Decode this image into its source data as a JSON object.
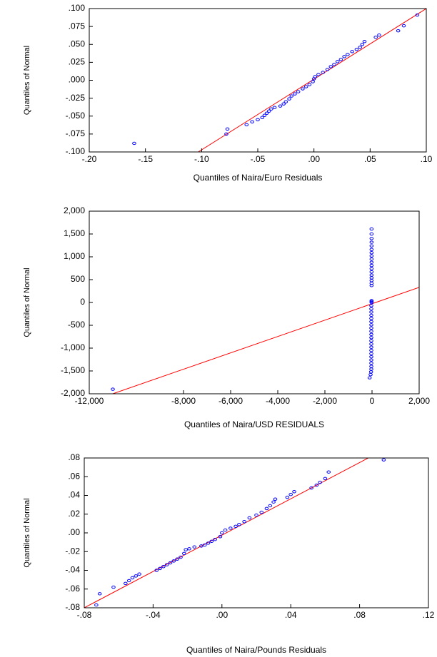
{
  "chart_data": [
    {
      "type": "scatter",
      "y_label": "Quantiles of Normal",
      "x_label": "Quantiles of Naira/Euro Residuals",
      "color": "#0000ff",
      "xlim": [
        -0.2,
        0.1
      ],
      "ylim": [
        -0.1,
        0.1
      ],
      "xticks": [
        {
          "value": -0.2,
          "label": "-.20"
        },
        {
          "value": -0.15,
          "label": "-.15"
        },
        {
          "value": -0.1,
          "label": "-.10"
        },
        {
          "value": -0.05,
          "label": "-.05"
        },
        {
          "value": 0,
          "label": ".00"
        },
        {
          "value": 0.05,
          "label": ".05"
        },
        {
          "value": 0.1,
          "label": ".10"
        }
      ],
      "yticks": [
        {
          "value": -0.1,
          "label": "-.100"
        },
        {
          "value": -0.075,
          "label": "-.075"
        },
        {
          "value": -0.05,
          "label": "-.050"
        },
        {
          "value": -0.025,
          "label": "-.025"
        },
        {
          "value": 0,
          "label": ".000"
        },
        {
          "value": 0.025,
          "label": ".025"
        },
        {
          "value": 0.05,
          "label": ".050"
        },
        {
          "value": 0.075,
          "label": ".075"
        },
        {
          "value": 0.1,
          "label": ".100"
        }
      ],
      "x": [
        -0.16,
        -0.078,
        -0.077,
        -0.06,
        -0.055,
        -0.05,
        -0.046,
        -0.044,
        -0.042,
        -0.04,
        -0.038,
        -0.035,
        -0.03,
        -0.027,
        -0.025,
        -0.022,
        -0.02,
        -0.017,
        -0.014,
        -0.01,
        -0.007,
        -0.004,
        -0.001,
        0.0,
        0.001,
        0.004,
        0.008,
        0.012,
        0.015,
        0.018,
        0.021,
        0.024,
        0.027,
        0.03,
        0.034,
        0.038,
        0.041,
        0.043,
        0.045,
        0.055,
        0.058,
        0.075,
        0.08,
        0.092
      ],
      "y": [
        -0.088,
        -0.075,
        -0.068,
        -0.062,
        -0.058,
        -0.055,
        -0.052,
        -0.049,
        -0.046,
        -0.043,
        -0.04,
        -0.038,
        -0.036,
        -0.033,
        -0.03,
        -0.026,
        -0.022,
        -0.019,
        -0.016,
        -0.012,
        -0.009,
        -0.006,
        -0.002,
        0.002,
        0.005,
        0.008,
        0.011,
        0.015,
        0.019,
        0.022,
        0.026,
        0.029,
        0.033,
        0.036,
        0.04,
        0.043,
        0.046,
        0.05,
        0.054,
        0.06,
        0.063,
        0.069,
        0.076,
        0.091
      ],
      "reference_line": {
        "x": [
          -0.103,
          0.1
        ],
        "y": [
          -0.1,
          0.1
        ],
        "color": "#ff0000"
      }
    },
    {
      "type": "scatter",
      "y_label": "Quantiles of Normal",
      "x_label": "Quantiles of Naira/USD RESIDUALS",
      "color": "#0000ff",
      "xlim": [
        -12000,
        2000
      ],
      "ylim": [
        -2000,
        2000
      ],
      "xticks": [
        {
          "value": -12000,
          "label": "-12,000"
        },
        {
          "value": -8000,
          "label": "-8,000"
        },
        {
          "value": -6000,
          "label": "-6,000"
        },
        {
          "value": -4000,
          "label": "-4,000"
        },
        {
          "value": -2000,
          "label": "-2,000"
        },
        0,
        {
          "value": 2000,
          "label": "2,000"
        }
      ],
      "yticks": [
        {
          "value": -2000,
          "label": "-2,000"
        },
        {
          "value": -1500,
          "label": "-1,500"
        },
        {
          "value": -1000,
          "label": "-1,000"
        },
        -500,
        0,
        500,
        {
          "value": 1000,
          "label": "1,000"
        },
        {
          "value": 1500,
          "label": "1,500"
        },
        {
          "value": 2000,
          "label": "2,000"
        }
      ],
      "x": [
        -11000,
        -100,
        -60,
        -40,
        -30,
        -30,
        -30,
        -30,
        -30,
        -30,
        -30,
        -30,
        -30,
        -30,
        -30,
        -30,
        -30,
        -30,
        -30,
        -30,
        -30,
        -30,
        -30,
        -30,
        -30,
        -20,
        -20,
        -20,
        -20,
        -20,
        -20,
        -20,
        -20,
        -20,
        -20,
        -20,
        -20,
        -20,
        -20,
        -20,
        -20,
        -20,
        -20,
        -20,
        -20,
        -20
      ],
      "y": [
        -1900,
        -1650,
        -1580,
        -1520,
        -1460,
        -1400,
        -1330,
        -1260,
        -1190,
        -1120,
        -1050,
        -980,
        -910,
        -840,
        -770,
        -700,
        -630,
        -560,
        -490,
        -420,
        -350,
        -280,
        -210,
        -140,
        -70,
        0,
        20,
        40,
        370,
        420,
        480,
        540,
        600,
        670,
        740,
        810,
        880,
        950,
        1020,
        1090,
        1160,
        1240,
        1320,
        1400,
        1500,
        1610
      ],
      "reference_line": {
        "x": [
          -11000,
          2000
        ],
        "y": [
          -2000,
          330
        ],
        "color": "#ff0000"
      }
    },
    {
      "type": "scatter",
      "y_label": "Quantiles of Normal",
      "x_label": "Quantiles of Naira/Pounds Residuals",
      "color": "#0000ff",
      "xlim": [
        -0.08,
        0.12
      ],
      "ylim": [
        -0.08,
        0.08
      ],
      "xticks": [
        {
          "value": -0.08,
          "label": "-.08"
        },
        {
          "value": -0.04,
          "label": "-.04"
        },
        {
          "value": 0,
          "label": ".00"
        },
        {
          "value": 0.04,
          "label": ".04"
        },
        {
          "value": 0.08,
          "label": ".08"
        },
        {
          "value": 0.12,
          "label": ".12"
        }
      ],
      "yticks": [
        {
          "value": -0.08,
          "label": "-.08"
        },
        {
          "value": -0.06,
          "label": "-.06"
        },
        {
          "value": -0.04,
          "label": "-.04"
        },
        {
          "value": -0.02,
          "label": "-.02"
        },
        {
          "value": 0,
          "label": ".00"
        },
        {
          "value": 0.02,
          "label": ".02"
        },
        {
          "value": 0.04,
          "label": ".04"
        },
        {
          "value": 0.06,
          "label": ".06"
        },
        {
          "value": 0.08,
          "label": ".08"
        }
      ],
      "x": [
        -0.073,
        -0.071,
        -0.063,
        -0.056,
        -0.054,
        -0.052,
        -0.05,
        -0.048,
        -0.038,
        -0.036,
        -0.034,
        -0.032,
        -0.03,
        -0.028,
        -0.026,
        -0.024,
        -0.022,
        -0.021,
        -0.019,
        -0.016,
        -0.012,
        -0.01,
        -0.008,
        -0.006,
        -0.004,
        -0.001,
        0.0,
        0.002,
        0.005,
        0.008,
        0.01,
        0.013,
        0.016,
        0.02,
        0.023,
        0.026,
        0.028,
        0.03,
        0.031,
        0.038,
        0.04,
        0.042,
        0.052,
        0.055,
        0.057,
        0.06,
        0.062,
        0.094
      ],
      "y": [
        -0.077,
        -0.065,
        -0.058,
        -0.054,
        -0.051,
        -0.048,
        -0.046,
        -0.044,
        -0.04,
        -0.038,
        -0.036,
        -0.034,
        -0.032,
        -0.03,
        -0.028,
        -0.026,
        -0.022,
        -0.018,
        -0.017,
        -0.015,
        -0.014,
        -0.013,
        -0.011,
        -0.009,
        -0.007,
        -0.004,
        0.0,
        0.003,
        0.005,
        0.007,
        0.009,
        0.012,
        0.016,
        0.019,
        0.022,
        0.026,
        0.029,
        0.033,
        0.036,
        0.038,
        0.041,
        0.044,
        0.048,
        0.051,
        0.054,
        0.058,
        0.065,
        0.078
      ],
      "reference_line": {
        "x": [
          -0.08,
          0.085
        ],
        "y": [
          -0.08,
          0.08
        ],
        "color": "#ff0000"
      }
    }
  ]
}
